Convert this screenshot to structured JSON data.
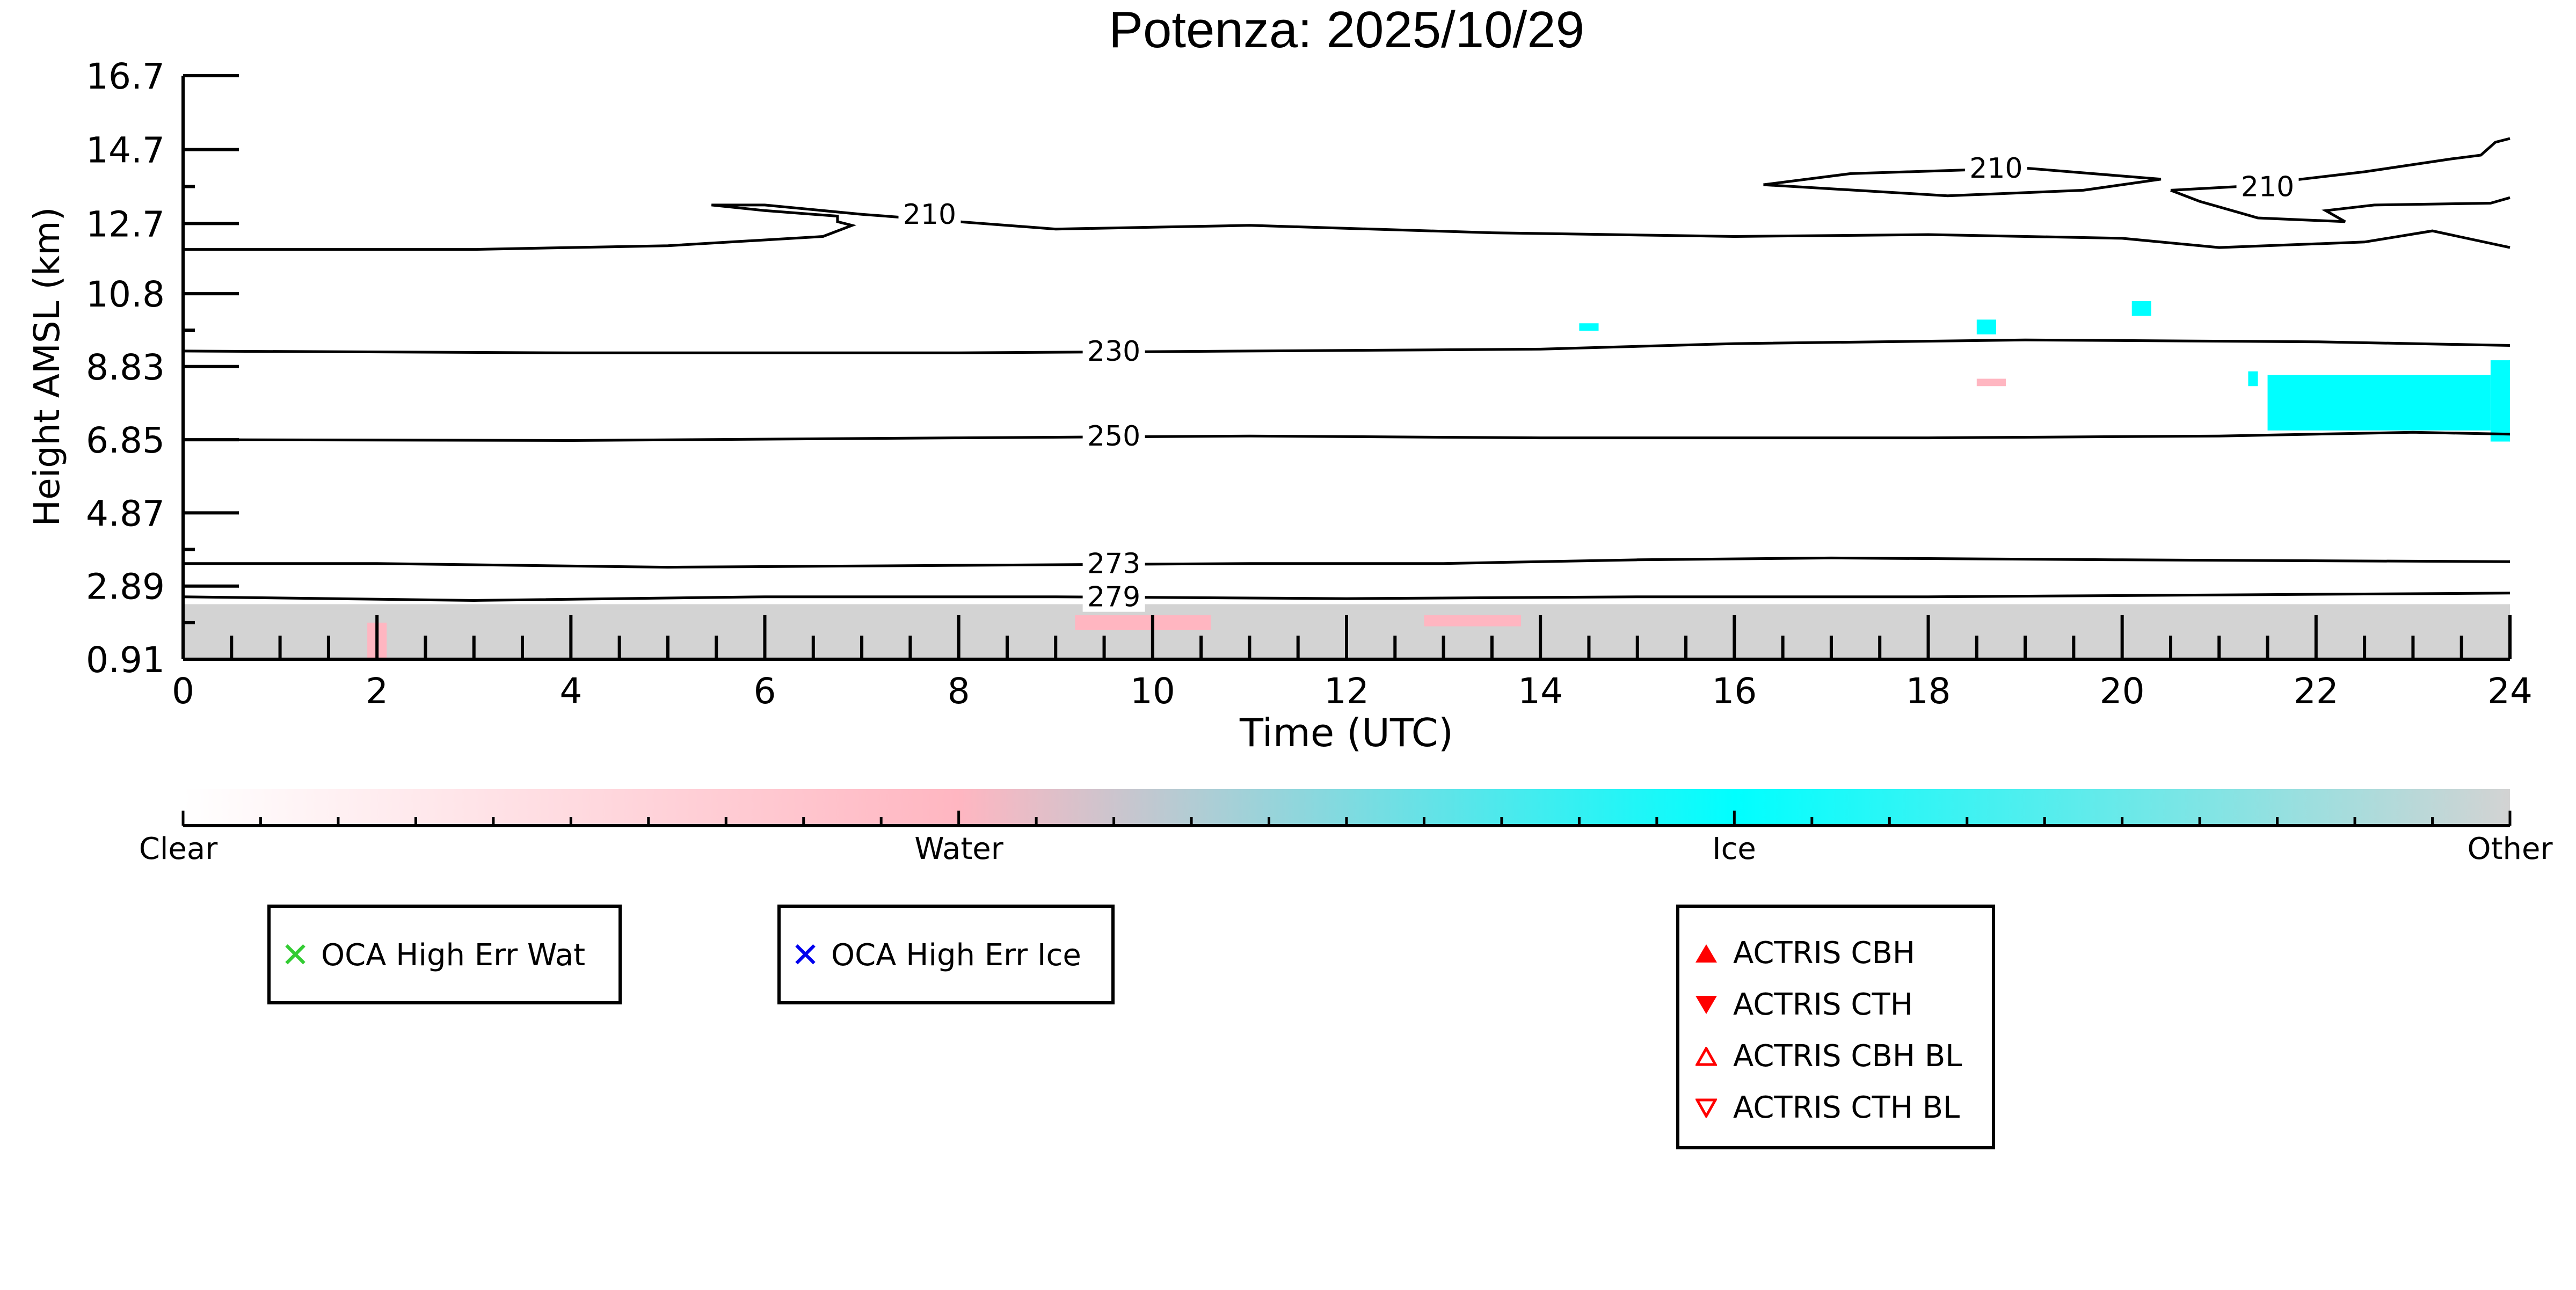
{
  "chart_data": {
    "type": "heatmap",
    "title": "Potenza: 2025/10/29",
    "xlabel": "Time (UTC)",
    "ylabel": "Height AMSL (km)",
    "xlim": [
      0,
      24
    ],
    "ylim": [
      0.91,
      16.7
    ],
    "x_ticks": [
      "0",
      "2",
      "4",
      "6",
      "8",
      "10",
      "12",
      "14",
      "16",
      "18",
      "20",
      "22",
      "24"
    ],
    "y_ticks": [
      "0.91",
      "2.89",
      "4.87",
      "6.85",
      "8.83",
      "10.8",
      "12.7",
      "14.7",
      "16.7"
    ],
    "y_tick_values": [
      0.91,
      2.89,
      4.87,
      6.85,
      8.83,
      10.8,
      12.7,
      14.7,
      16.7
    ],
    "colorbar": {
      "labels": [
        "Clear",
        "Water",
        "Ice",
        "Other"
      ],
      "colors": [
        "#ffffff",
        "#ffb6c1",
        "#00ffff",
        "#d3d3d3"
      ]
    },
    "contours": [
      {
        "label": "279",
        "label_x": 9.6,
        "points": [
          [
            0,
            2.6
          ],
          [
            3,
            2.5
          ],
          [
            6,
            2.6
          ],
          [
            9,
            2.6
          ],
          [
            12,
            2.55
          ],
          [
            15,
            2.6
          ],
          [
            18,
            2.6
          ],
          [
            21,
            2.65
          ],
          [
            24,
            2.7
          ]
        ]
      },
      {
        "label": "273",
        "label_x": 9.6,
        "points": [
          [
            0,
            3.5
          ],
          [
            2,
            3.5
          ],
          [
            5,
            3.4
          ],
          [
            8,
            3.45
          ],
          [
            11,
            3.5
          ],
          [
            13,
            3.5
          ],
          [
            15,
            3.6
          ],
          [
            17,
            3.65
          ],
          [
            20,
            3.6
          ],
          [
            24,
            3.55
          ]
        ]
      },
      {
        "label": "250",
        "label_x": 9.6,
        "points": [
          [
            0,
            6.85
          ],
          [
            4,
            6.83
          ],
          [
            8,
            6.9
          ],
          [
            11,
            6.95
          ],
          [
            14,
            6.9
          ],
          [
            18,
            6.9
          ],
          [
            21,
            6.95
          ],
          [
            23,
            7.05
          ],
          [
            24,
            7.0
          ]
        ]
      },
      {
        "label": "230",
        "label_x": 9.6,
        "points": [
          [
            0,
            9.25
          ],
          [
            4,
            9.2
          ],
          [
            8,
            9.2
          ],
          [
            11,
            9.25
          ],
          [
            14,
            9.3
          ],
          [
            16,
            9.45
          ],
          [
            19,
            9.55
          ],
          [
            22,
            9.5
          ],
          [
            24,
            9.4
          ]
        ]
      },
      {
        "label": "210",
        "label_x": 7.7,
        "points": [
          [
            0,
            12.0
          ],
          [
            3,
            12.0
          ],
          [
            5,
            12.1
          ],
          [
            6.6,
            12.35
          ],
          [
            6.9,
            12.65
          ],
          [
            6.75,
            12.75
          ],
          [
            6.75,
            12.9
          ],
          [
            6.0,
            13.05
          ],
          [
            5.45,
            13.2
          ],
          [
            6.0,
            13.2
          ],
          [
            7.0,
            12.95
          ],
          [
            9,
            12.55
          ],
          [
            11,
            12.65
          ],
          [
            13.5,
            12.45
          ],
          [
            16,
            12.35
          ],
          [
            18,
            12.4
          ],
          [
            20,
            12.3
          ],
          [
            21,
            12.05
          ],
          [
            22.5,
            12.2
          ],
          [
            23.2,
            12.5
          ],
          [
            24,
            12.05
          ]
        ]
      },
      {
        "label": "210",
        "label_x": 18.7,
        "points": [
          [
            16.3,
            13.75
          ],
          [
            17.2,
            14.05
          ],
          [
            19,
            14.2
          ],
          [
            20.4,
            13.9
          ],
          [
            19.6,
            13.6
          ],
          [
            18.2,
            13.45
          ],
          [
            16.3,
            13.75
          ]
        ]
      },
      {
        "label": "210",
        "label_x": 21.5,
        "points": [
          [
            20.5,
            13.6
          ],
          [
            21.2,
            13.7
          ],
          [
            22.5,
            14.1
          ],
          [
            23.4,
            14.45
          ],
          [
            23.7,
            14.55
          ],
          [
            23.85,
            14.9
          ],
          [
            24,
            15.0
          ]
        ]
      },
      {
        "label": "210",
        "label_x": 21.5,
        "points": [
          [
            20.5,
            13.6
          ],
          [
            20.8,
            13.3
          ],
          [
            21.4,
            12.85
          ],
          [
            22.3,
            12.75
          ],
          [
            22.1,
            13.05
          ],
          [
            22.6,
            13.2
          ],
          [
            23.8,
            13.25
          ],
          [
            24,
            13.4
          ]
        ]
      }
    ],
    "classification_regions": [
      {
        "class": "Other",
        "x": [
          0,
          24
        ],
        "y": [
          0.91,
          2.4
        ]
      },
      {
        "class": "Water",
        "x": [
          1.9,
          2.1
        ],
        "y": [
          0.91,
          1.9
        ]
      },
      {
        "class": "Water",
        "x": [
          9.2,
          10.6
        ],
        "y": [
          1.7,
          2.1
        ]
      },
      {
        "class": "Water",
        "x": [
          12.8,
          13.8
        ],
        "y": [
          1.8,
          2.1
        ]
      },
      {
        "class": "Ice",
        "x": [
          14.4,
          14.6
        ],
        "y": [
          9.8,
          10.0
        ]
      },
      {
        "class": "Ice",
        "x": [
          18.5,
          18.7
        ],
        "y": [
          9.7,
          10.1
        ]
      },
      {
        "class": "Ice",
        "x": [
          20.1,
          20.3
        ],
        "y": [
          10.2,
          10.6
        ]
      },
      {
        "class": "Water",
        "x": [
          18.5,
          18.8
        ],
        "y": [
          8.3,
          8.5
        ]
      },
      {
        "class": "Ice",
        "x": [
          21.3,
          21.4
        ],
        "y": [
          8.3,
          8.7
        ]
      },
      {
        "class": "Ice",
        "x": [
          21.5,
          23.8
        ],
        "y": [
          7.1,
          8.6
        ]
      },
      {
        "class": "Ice",
        "x": [
          23.8,
          24.0
        ],
        "y": [
          6.8,
          9.0
        ]
      }
    ]
  },
  "legends": {
    "oca_water": {
      "label": "OCA High Err Wat",
      "marker": "✕",
      "color": "#33cc33"
    },
    "oca_ice": {
      "label": "OCA High Err Ice",
      "marker": "✕",
      "color": "#0000ee"
    },
    "actris": [
      {
        "label": "ACTRIS CBH",
        "marker": "triangle-up-filled",
        "color": "#ff0000"
      },
      {
        "label": "ACTRIS CTH",
        "marker": "triangle-down-filled",
        "color": "#ff0000"
      },
      {
        "label": "ACTRIS CBH BL",
        "marker": "triangle-up-open",
        "color": "#ff0000"
      },
      {
        "label": "ACTRIS CTH BL",
        "marker": "triangle-down-open",
        "color": "#ff0000"
      }
    ]
  }
}
